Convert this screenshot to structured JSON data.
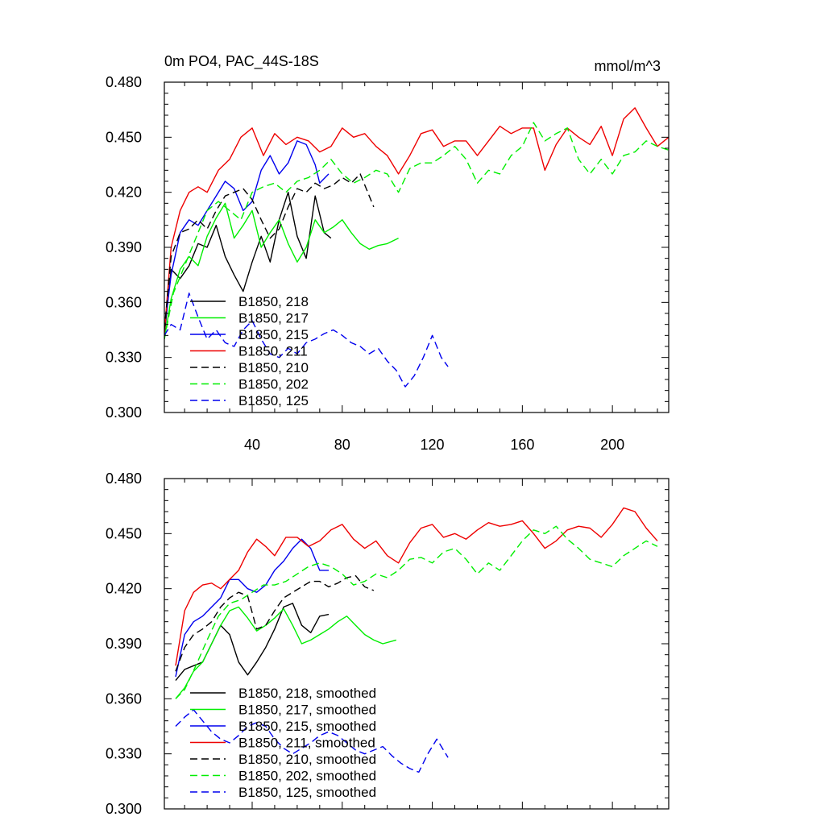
{
  "figure": {
    "title_left": "0m PO4, PAC_44S-18S",
    "title_right": "mmol/m^3"
  },
  "styles": {
    "B1850, 218": {
      "color": "#000000",
      "dash": "solid"
    },
    "B1850, 217": {
      "color": "#00ee00",
      "dash": "solid"
    },
    "B1850, 215": {
      "color": "#0000ee",
      "dash": "solid"
    },
    "B1850, 211": {
      "color": "#ee0000",
      "dash": "solid"
    },
    "B1850, 210": {
      "color": "#000000",
      "dash": "dashed"
    },
    "B1850, 202": {
      "color": "#00ee00",
      "dash": "dashed"
    },
    "B1850, 125": {
      "color": "#0000ee",
      "dash": "dashed"
    }
  },
  "chart_data": [
    {
      "type": "line",
      "panel": "top",
      "title": "0m PO4, PAC_44S-18S",
      "units": "mmol/m^3",
      "xlim": [
        1,
        225
      ],
      "ylim": [
        0.3,
        0.48
      ],
      "xticks": [
        40,
        80,
        120,
        160,
        200
      ],
      "yticks": [
        "0.300",
        "0.330",
        "0.360",
        "0.390",
        "0.420",
        "0.450",
        "0.480"
      ],
      "legend": [
        "B1850, 218",
        "B1850, 217",
        "B1850, 215",
        "B1850, 211",
        "B1850, 210",
        "B1850, 202",
        "B1850, 125"
      ],
      "series": [
        {
          "name": "B1850, 218",
          "x": [
            1,
            4,
            8,
            12,
            16,
            20,
            24,
            28,
            32,
            36,
            40,
            44,
            48,
            52,
            56,
            60,
            64,
            68,
            72,
            75
          ],
          "y": [
            0.342,
            0.378,
            0.373,
            0.38,
            0.392,
            0.39,
            0.402,
            0.385,
            0.375,
            0.366,
            0.382,
            0.396,
            0.382,
            0.405,
            0.42,
            0.396,
            0.384,
            0.418,
            0.398,
            0.395
          ]
        },
        {
          "name": "B1850, 217",
          "x": [
            1,
            4,
            8,
            12,
            16,
            20,
            24,
            28,
            32,
            36,
            40,
            44,
            48,
            52,
            56,
            60,
            64,
            68,
            72,
            76,
            80,
            84,
            88,
            92,
            96,
            100,
            105
          ],
          "y": [
            0.34,
            0.362,
            0.378,
            0.385,
            0.38,
            0.396,
            0.406,
            0.414,
            0.395,
            0.402,
            0.41,
            0.39,
            0.398,
            0.405,
            0.392,
            0.382,
            0.39,
            0.405,
            0.398,
            0.401,
            0.405,
            0.398,
            0.392,
            0.389,
            0.391,
            0.392,
            0.395
          ]
        },
        {
          "name": "B1850, 215",
          "x": [
            1,
            4,
            8,
            12,
            16,
            20,
            24,
            28,
            32,
            36,
            40,
            44,
            48,
            52,
            56,
            60,
            64,
            68,
            70,
            74
          ],
          "y": [
            0.345,
            0.375,
            0.398,
            0.405,
            0.402,
            0.41,
            0.418,
            0.426,
            0.422,
            0.41,
            0.415,
            0.432,
            0.44,
            0.43,
            0.436,
            0.448,
            0.446,
            0.435,
            0.425,
            0.43
          ]
        },
        {
          "name": "B1850, 211",
          "x": [
            1,
            4,
            8,
            12,
            16,
            20,
            25,
            30,
            35,
            40,
            45,
            50,
            55,
            60,
            65,
            70,
            75,
            80,
            85,
            90,
            95,
            100,
            105,
            110,
            115,
            120,
            125,
            130,
            135,
            140,
            145,
            150,
            155,
            160,
            165,
            170,
            175,
            180,
            185,
            190,
            195,
            200,
            205,
            210,
            215,
            220,
            225
          ],
          "y": [
            0.343,
            0.39,
            0.41,
            0.42,
            0.423,
            0.42,
            0.432,
            0.438,
            0.45,
            0.455,
            0.44,
            0.452,
            0.446,
            0.45,
            0.448,
            0.442,
            0.445,
            0.455,
            0.45,
            0.452,
            0.445,
            0.44,
            0.43,
            0.44,
            0.452,
            0.454,
            0.445,
            0.448,
            0.448,
            0.44,
            0.448,
            0.456,
            0.452,
            0.455,
            0.455,
            0.432,
            0.446,
            0.455,
            0.45,
            0.446,
            0.456,
            0.44,
            0.46,
            0.466,
            0.455,
            0.445,
            0.45
          ]
        },
        {
          "name": "B1850, 210",
          "x": [
            1,
            4,
            8,
            12,
            16,
            20,
            24,
            28,
            32,
            36,
            40,
            44,
            48,
            52,
            56,
            60,
            64,
            68,
            72,
            76,
            80,
            84,
            88,
            92,
            94
          ],
          "y": [
            0.345,
            0.385,
            0.398,
            0.4,
            0.405,
            0.4,
            0.41,
            0.418,
            0.42,
            0.422,
            0.416,
            0.405,
            0.395,
            0.4,
            0.412,
            0.422,
            0.42,
            0.425,
            0.422,
            0.424,
            0.428,
            0.425,
            0.43,
            0.418,
            0.412
          ]
        },
        {
          "name": "B1850, 202",
          "x": [
            1,
            5,
            10,
            15,
            20,
            25,
            30,
            35,
            40,
            45,
            50,
            55,
            60,
            65,
            70,
            75,
            80,
            85,
            90,
            95,
            100,
            105,
            110,
            115,
            120,
            125,
            130,
            135,
            140,
            145,
            150,
            155,
            160,
            165,
            170,
            175,
            180,
            185,
            190,
            195,
            200,
            205,
            210,
            215,
            220,
            225
          ],
          "y": [
            0.34,
            0.365,
            0.38,
            0.395,
            0.41,
            0.415,
            0.41,
            0.405,
            0.42,
            0.423,
            0.425,
            0.42,
            0.426,
            0.428,
            0.432,
            0.438,
            0.43,
            0.425,
            0.428,
            0.432,
            0.43,
            0.42,
            0.433,
            0.436,
            0.436,
            0.44,
            0.445,
            0.438,
            0.425,
            0.432,
            0.43,
            0.44,
            0.445,
            0.458,
            0.448,
            0.452,
            0.455,
            0.438,
            0.43,
            0.438,
            0.43,
            0.44,
            0.442,
            0.448,
            0.445,
            0.443
          ]
        },
        {
          "name": "B1850, 125",
          "x": [
            1,
            4,
            8,
            12,
            16,
            20,
            24,
            28,
            32,
            36,
            40,
            44,
            48,
            52,
            56,
            60,
            64,
            68,
            72,
            76,
            80,
            84,
            88,
            92,
            96,
            100,
            104,
            108,
            112,
            116,
            120,
            124,
            127
          ],
          "y": [
            0.342,
            0.348,
            0.345,
            0.365,
            0.352,
            0.34,
            0.345,
            0.338,
            0.336,
            0.345,
            0.35,
            0.34,
            0.332,
            0.33,
            0.335,
            0.332,
            0.338,
            0.34,
            0.343,
            0.345,
            0.342,
            0.338,
            0.336,
            0.332,
            0.335,
            0.328,
            0.323,
            0.314,
            0.32,
            0.33,
            0.342,
            0.33,
            0.325
          ]
        }
      ]
    },
    {
      "type": "line",
      "panel": "bottom",
      "xlim": [
        1,
        225
      ],
      "ylim": [
        0.3,
        0.48
      ],
      "yticks": [
        "0.300",
        "0.330",
        "0.360",
        "0.390",
        "0.420",
        "0.450",
        "0.480"
      ],
      "legend": [
        "B1850, 218, smoothed",
        "B1850, 217, smoothed",
        "B1850, 215, smoothed",
        "B1850, 211, smoothed",
        "B1850, 210, smoothed",
        "B1850, 202, smoothed",
        "B1850, 125, smoothed"
      ],
      "series": [
        {
          "name": "B1850, 218, smoothed",
          "x": [
            6,
            10,
            14,
            18,
            22,
            26,
            30,
            34,
            38,
            42,
            46,
            50,
            54,
            58,
            62,
            66,
            70,
            74
          ],
          "y": [
            0.37,
            0.376,
            0.378,
            0.38,
            0.39,
            0.4,
            0.395,
            0.38,
            0.373,
            0.38,
            0.388,
            0.398,
            0.41,
            0.412,
            0.4,
            0.396,
            0.405,
            0.406
          ]
        },
        {
          "name": "B1850, 217, smoothed",
          "x": [
            6,
            10,
            14,
            18,
            22,
            26,
            30,
            34,
            38,
            42,
            46,
            50,
            54,
            58,
            62,
            66,
            70,
            74,
            78,
            82,
            86,
            90,
            94,
            98,
            104
          ],
          "y": [
            0.36,
            0.366,
            0.375,
            0.38,
            0.39,
            0.4,
            0.408,
            0.41,
            0.404,
            0.397,
            0.4,
            0.404,
            0.409,
            0.4,
            0.39,
            0.392,
            0.395,
            0.398,
            0.402,
            0.405,
            0.4,
            0.395,
            0.392,
            0.39,
            0.392
          ]
        },
        {
          "name": "B1850, 215, smoothed",
          "x": [
            6,
            10,
            14,
            18,
            22,
            26,
            30,
            34,
            38,
            42,
            46,
            50,
            54,
            58,
            62,
            66,
            70,
            74
          ],
          "y": [
            0.372,
            0.395,
            0.402,
            0.405,
            0.41,
            0.415,
            0.425,
            0.425,
            0.42,
            0.418,
            0.422,
            0.43,
            0.435,
            0.442,
            0.447,
            0.442,
            0.43,
            0.43
          ]
        },
        {
          "name": "B1850, 211, smoothed",
          "x": [
            6,
            10,
            14,
            18,
            22,
            26,
            30,
            34,
            38,
            42,
            46,
            50,
            55,
            60,
            65,
            70,
            75,
            80,
            85,
            90,
            95,
            100,
            105,
            110,
            115,
            120,
            125,
            130,
            135,
            140,
            145,
            150,
            155,
            160,
            165,
            170,
            175,
            180,
            185,
            190,
            195,
            200,
            205,
            210,
            215,
            220
          ],
          "y": [
            0.378,
            0.408,
            0.418,
            0.422,
            0.423,
            0.42,
            0.425,
            0.43,
            0.44,
            0.447,
            0.443,
            0.438,
            0.448,
            0.448,
            0.443,
            0.446,
            0.452,
            0.455,
            0.447,
            0.442,
            0.446,
            0.438,
            0.434,
            0.445,
            0.453,
            0.455,
            0.448,
            0.45,
            0.447,
            0.452,
            0.456,
            0.454,
            0.455,
            0.457,
            0.45,
            0.442,
            0.446,
            0.452,
            0.454,
            0.453,
            0.448,
            0.455,
            0.464,
            0.462,
            0.453,
            0.446
          ]
        },
        {
          "name": "B1850, 210, smoothed",
          "x": [
            6,
            10,
            14,
            18,
            22,
            26,
            30,
            34,
            38,
            42,
            46,
            50,
            54,
            58,
            62,
            66,
            70,
            74,
            78,
            82,
            86,
            90,
            94
          ],
          "y": [
            0.375,
            0.388,
            0.395,
            0.398,
            0.402,
            0.41,
            0.415,
            0.418,
            0.416,
            0.398,
            0.4,
            0.408,
            0.415,
            0.418,
            0.421,
            0.424,
            0.424,
            0.421,
            0.423,
            0.426,
            0.427,
            0.421,
            0.419
          ]
        },
        {
          "name": "B1850, 202, smoothed",
          "x": [
            6,
            10,
            15,
            20,
            25,
            30,
            35,
            40,
            45,
            50,
            55,
            60,
            65,
            70,
            75,
            80,
            85,
            90,
            95,
            100,
            105,
            110,
            115,
            120,
            125,
            130,
            135,
            140,
            145,
            150,
            155,
            160,
            165,
            170,
            175,
            180,
            185,
            190,
            195,
            200,
            205,
            210,
            215,
            220
          ],
          "y": [
            0.36,
            0.365,
            0.378,
            0.392,
            0.405,
            0.412,
            0.414,
            0.418,
            0.422,
            0.422,
            0.424,
            0.428,
            0.432,
            0.434,
            0.432,
            0.428,
            0.422,
            0.424,
            0.428,
            0.426,
            0.43,
            0.436,
            0.437,
            0.434,
            0.44,
            0.442,
            0.436,
            0.428,
            0.434,
            0.43,
            0.438,
            0.446,
            0.452,
            0.45,
            0.454,
            0.447,
            0.442,
            0.436,
            0.434,
            0.432,
            0.438,
            0.442,
            0.446,
            0.443
          ]
        },
        {
          "name": "B1850, 125, smoothed",
          "x": [
            6,
            10,
            14,
            18,
            22,
            26,
            30,
            34,
            38,
            42,
            46,
            50,
            54,
            58,
            62,
            66,
            70,
            74,
            78,
            82,
            86,
            90,
            94,
            98,
            102,
            106,
            110,
            114,
            118,
            122,
            127
          ],
          "y": [
            0.345,
            0.35,
            0.354,
            0.348,
            0.342,
            0.338,
            0.336,
            0.34,
            0.345,
            0.347,
            0.345,
            0.338,
            0.333,
            0.33,
            0.333,
            0.336,
            0.34,
            0.342,
            0.34,
            0.336,
            0.332,
            0.33,
            0.332,
            0.334,
            0.329,
            0.325,
            0.322,
            0.32,
            0.33,
            0.338,
            0.328
          ]
        }
      ]
    }
  ]
}
